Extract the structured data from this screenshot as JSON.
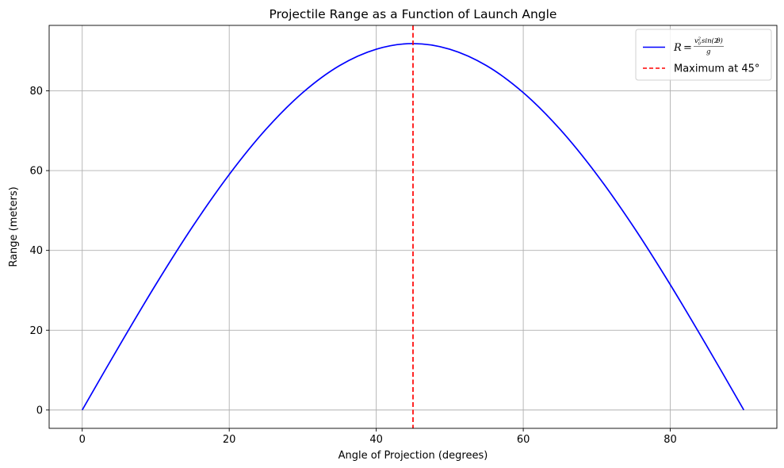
{
  "chart_data": {
    "type": "line",
    "title": "Projectile Range as a Function of Launch Angle",
    "xlabel": "Angle of Projection (degrees)",
    "ylabel": "Range (meters)",
    "xlim": [
      -4.5,
      94.5
    ],
    "ylim": [
      -4.6,
      96.4
    ],
    "xticks": [
      0,
      20,
      40,
      60,
      80
    ],
    "yticks": [
      0,
      20,
      40,
      60,
      80
    ],
    "grid": true,
    "legend_position": "top-right",
    "series": [
      {
        "name": "R = v0² sin(2θ) / g",
        "color": "#0000ff",
        "style": "solid",
        "x": [
          0,
          5,
          10,
          15,
          20,
          25,
          30,
          35,
          40,
          45,
          50,
          55,
          60,
          65,
          70,
          75,
          80,
          85,
          90
        ],
        "y": [
          0,
          15.95,
          31.41,
          45.92,
          59.03,
          70.36,
          79.55,
          86.31,
          90.43,
          91.84,
          90.43,
          86.31,
          79.55,
          70.36,
          59.03,
          45.92,
          31.41,
          15.95,
          0
        ]
      }
    ],
    "reference_lines": [
      {
        "orientation": "vertical",
        "x": 45,
        "name": "Maximum at 45°",
        "color": "#ff0000",
        "style": "dashed"
      }
    ]
  }
}
